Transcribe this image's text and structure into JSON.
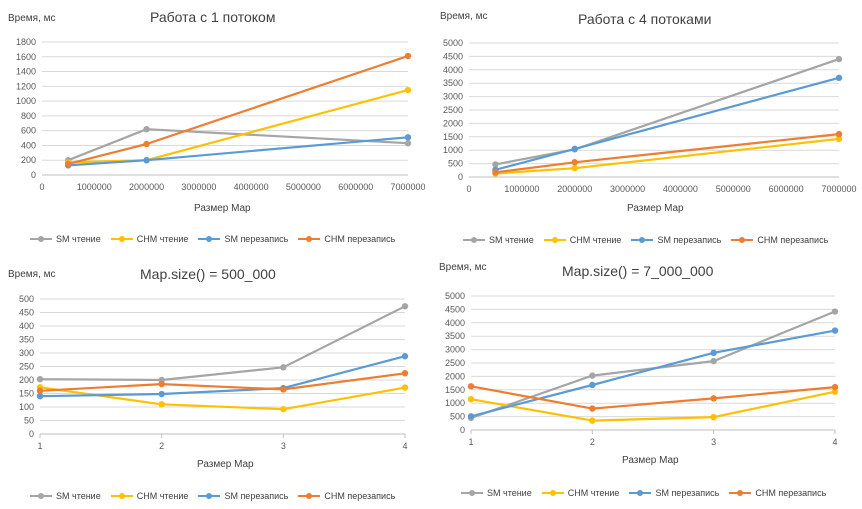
{
  "colors": {
    "sm_read": "#a5a5a5",
    "chm_read": "#ffc000",
    "sm_write": "#5b9bd5",
    "chm_write": "#ed7d31",
    "grid": "#d9d9d9",
    "axis": "#bfbfbf"
  },
  "chart_data": [
    {
      "type": "line",
      "title": "Работа с 1 потоком",
      "ylabel": "Время, мс",
      "xlabel": "Размер Map",
      "x_axis": "numeric",
      "xlim": [
        0,
        7000000
      ],
      "x_ticks": [
        0,
        1000000,
        2000000,
        3000000,
        4000000,
        5000000,
        6000000,
        7000000
      ],
      "ylim": [
        0,
        1800
      ],
      "y_ticks": [
        0,
        200,
        400,
        600,
        800,
        1000,
        1200,
        1400,
        1600,
        1800
      ],
      "x": [
        500000,
        2000000,
        7000000
      ],
      "series": [
        {
          "name": "SM чтение",
          "color": "#a5a5a5",
          "values": [
            200,
            620,
            430
          ]
        },
        {
          "name": "CHM чтение",
          "color": "#ffc000",
          "values": [
            170,
            200,
            1150
          ]
        },
        {
          "name": "SM перезапись",
          "color": "#5b9bd5",
          "values": [
            130,
            200,
            510
          ]
        },
        {
          "name": "CHM перезапись",
          "color": "#ed7d31",
          "values": [
            150,
            420,
            1610
          ]
        }
      ],
      "grid": true,
      "legend": "bottom"
    },
    {
      "type": "line",
      "title": "Работа с 4 потоками",
      "ylabel": "Время, мс",
      "xlabel": "Размер Map",
      "x_axis": "numeric",
      "xlim": [
        0,
        7000000
      ],
      "x_ticks": [
        0,
        1000000,
        2000000,
        3000000,
        4000000,
        5000000,
        6000000,
        7000000
      ],
      "ylim": [
        0,
        5000
      ],
      "y_ticks": [
        0,
        500,
        1000,
        1500,
        2000,
        2500,
        3000,
        3500,
        4000,
        4500,
        5000
      ],
      "x": [
        500000,
        2000000,
        7000000
      ],
      "series": [
        {
          "name": "SM чтение",
          "color": "#a5a5a5",
          "values": [
            470,
            1030,
            4400
          ]
        },
        {
          "name": "CHM чтение",
          "color": "#ffc000",
          "values": [
            130,
            330,
            1420
          ]
        },
        {
          "name": "SM перезапись",
          "color": "#5b9bd5",
          "values": [
            270,
            1050,
            3700
          ]
        },
        {
          "name": "CHM перезапись",
          "color": "#ed7d31",
          "values": [
            170,
            550,
            1600
          ]
        }
      ],
      "grid": true,
      "legend": "bottom"
    },
    {
      "type": "line",
      "title": "Map.size()  =  500_000",
      "ylabel": "Время, мс",
      "xlabel": "Размер Map",
      "x_axis": "category",
      "categories": [
        "1",
        "2",
        "3",
        "4"
      ],
      "ylim": [
        0,
        500
      ],
      "y_ticks": [
        0,
        50,
        100,
        150,
        200,
        250,
        300,
        350,
        400,
        450,
        500
      ],
      "series": [
        {
          "name": "SM чтение",
          "color": "#a5a5a5",
          "values": [
            203,
            200,
            247,
            473
          ]
        },
        {
          "name": "CHM чтение",
          "color": "#ffc000",
          "values": [
            173,
            110,
            92,
            172
          ]
        },
        {
          "name": "SM перезапись",
          "color": "#5b9bd5",
          "values": [
            140,
            148,
            170,
            288
          ]
        },
        {
          "name": "CHM перезапись",
          "color": "#ed7d31",
          "values": [
            160,
            185,
            165,
            225
          ]
        }
      ],
      "grid": true,
      "legend": "bottom"
    },
    {
      "type": "line",
      "title": "Map.size()  =  7_000_000",
      "ylabel": "Время, мс",
      "xlabel": "Размер Map",
      "x_axis": "category",
      "categories": [
        "1",
        "2",
        "3",
        "4"
      ],
      "ylim": [
        0,
        5000
      ],
      "y_ticks": [
        0,
        500,
        1000,
        1500,
        2000,
        2500,
        3000,
        3500,
        4000,
        4500,
        5000
      ],
      "series": [
        {
          "name": "SM чтение",
          "color": "#a5a5a5",
          "values": [
            450,
            2030,
            2570,
            4420
          ]
        },
        {
          "name": "CHM чтение",
          "color": "#ffc000",
          "values": [
            1150,
            350,
            480,
            1430
          ]
        },
        {
          "name": "SM перезапись",
          "color": "#5b9bd5",
          "values": [
            510,
            1680,
            2880,
            3710
          ]
        },
        {
          "name": "CHM перезапись",
          "color": "#ed7d31",
          "values": [
            1630,
            800,
            1180,
            1600
          ]
        }
      ],
      "grid": true,
      "legend": "bottom"
    }
  ]
}
